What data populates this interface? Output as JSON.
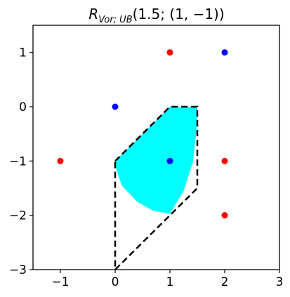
{
  "chart_data": {
    "type": "scatter",
    "title_main": "R",
    "title_sub": "Vor; UB",
    "title_rest": "(1.5; (1, −1))",
    "xlim": [
      -1.5,
      3
    ],
    "ylim": [
      -3,
      1.5
    ],
    "xticks": [
      -1,
      0,
      1,
      2,
      3
    ],
    "xtick_labels": [
      "−1",
      "0",
      "1",
      "2",
      "3"
    ],
    "yticks": [
      -3,
      -2,
      -1,
      0,
      1
    ],
    "ytick_labels": [
      "−3",
      "−2",
      "−1",
      "0",
      "1"
    ],
    "grid": false,
    "colors": {
      "red": "#ff0000",
      "blue": "#0000ff",
      "region": "#00ffff",
      "outline": "#000000"
    },
    "series": [
      {
        "color": "red",
        "points": [
          {
            "x": 1,
            "y": 1
          },
          {
            "x": -1,
            "y": -1
          },
          {
            "x": 2,
            "y": -1
          },
          {
            "x": 2,
            "y": -2
          }
        ]
      },
      {
        "color": "blue",
        "points": [
          {
            "x": 2,
            "y": 1
          },
          {
            "x": 0,
            "y": 0
          },
          {
            "x": 1,
            "y": -1
          }
        ]
      }
    ],
    "region": [
      {
        "x": 0,
        "y": -1
      },
      {
        "x": 1,
        "y": 0
      },
      {
        "x": 1.5,
        "y": 0
      },
      {
        "x": 1.5,
        "y": -0.3
      },
      {
        "x": 1.42,
        "y": -1.02
      },
      {
        "x": 1.25,
        "y": -1.55
      },
      {
        "x": 1.0,
        "y": -1.97
      },
      {
        "x": 0.7,
        "y": -1.92
      },
      {
        "x": 0.4,
        "y": -1.75
      },
      {
        "x": 0.12,
        "y": -1.45
      },
      {
        "x": 0.02,
        "y": -1.15
      }
    ],
    "outline": [
      {
        "x": 0,
        "y": -1
      },
      {
        "x": 1,
        "y": 0
      },
      {
        "x": 1.5,
        "y": 0
      },
      {
        "x": 1.5,
        "y": -1.5
      },
      {
        "x": 0,
        "y": -3
      },
      {
        "x": 0,
        "y": -1
      }
    ]
  }
}
